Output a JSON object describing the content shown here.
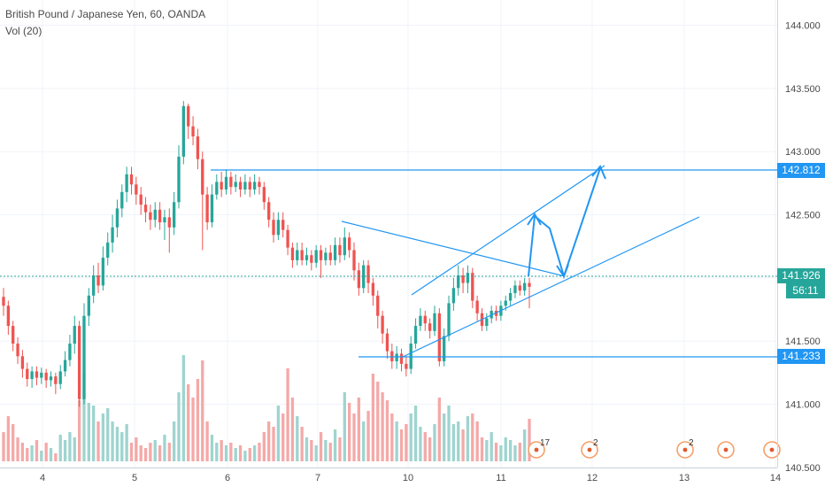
{
  "header": {
    "title": "British Pound / Japanese Yen, 60, OANDA",
    "volume_label": "Vol (20)"
  },
  "colors": {
    "up": "#26a69a",
    "down": "#ef5350",
    "up_vol": "#9fd4cf",
    "down_vol": "#f4a9a8",
    "drawing": "#2196f3",
    "current_price_tag": "#26a69a",
    "grid": "#f0f3fa",
    "axis_text": "#4a4a4a"
  },
  "chart_data": {
    "type": "candlestick",
    "symbol": "British Pound / Japanese Yen",
    "interval": "60",
    "source": "OANDA",
    "y_ticks": [
      "144.000",
      "143.500",
      "143.000",
      "142.500",
      "142.000",
      "141.500",
      "141.000",
      "140.500"
    ],
    "y_tick_values": [
      144.0,
      143.5,
      143.0,
      142.5,
      142.0,
      141.5,
      141.0,
      140.5
    ],
    "x_ticks": [
      "4",
      "5",
      "6",
      "7",
      "10",
      "11",
      "12",
      "13",
      "14"
    ],
    "ylim": [
      140.38,
      144.2
    ],
    "price_labels": {
      "resistance": "142.812",
      "current": "141.926",
      "countdown": "56:11",
      "support": "141.233"
    },
    "price_levels": {
      "resistance": 142.812,
      "current": 141.926,
      "support": 141.233
    },
    "event_markers": [
      {
        "label": "17"
      },
      {
        "label": "2"
      },
      {
        "label": "2"
      },
      {
        "label": ""
      },
      {
        "label": ""
      }
    ],
    "grid": true,
    "candles": [
      [
        141.85,
        141.78,
        141.92,
        141.7
      ],
      [
        141.78,
        141.62,
        141.82,
        141.55
      ],
      [
        141.62,
        141.48,
        141.66,
        141.42
      ],
      [
        141.48,
        141.38,
        141.53,
        141.32
      ],
      [
        141.38,
        141.28,
        141.43,
        141.21
      ],
      [
        141.28,
        141.2,
        141.33,
        141.14
      ],
      [
        141.2,
        141.26,
        141.3,
        141.13
      ],
      [
        141.26,
        141.21,
        141.3,
        141.15
      ],
      [
        141.21,
        141.25,
        141.29,
        141.16
      ],
      [
        141.25,
        141.19,
        141.28,
        141.13
      ],
      [
        141.19,
        141.22,
        141.26,
        141.14
      ],
      [
        141.22,
        141.16,
        141.25,
        141.08
      ],
      [
        141.16,
        141.26,
        141.31,
        141.12
      ],
      [
        141.26,
        141.35,
        141.42,
        141.22
      ],
      [
        141.35,
        141.48,
        141.55,
        141.3
      ],
      [
        141.48,
        141.62,
        141.7,
        141.4
      ],
      [
        141.62,
        141.04,
        141.66,
        140.98
      ],
      [
        141.04,
        141.7,
        141.8,
        141.0
      ],
      [
        141.7,
        141.86,
        141.92,
        141.62
      ],
      [
        141.86,
        142.02,
        142.1,
        141.8
      ],
      [
        142.02,
        141.94,
        142.12,
        141.88
      ],
      [
        141.94,
        142.16,
        142.25,
        141.9
      ],
      [
        142.16,
        142.28,
        142.36,
        142.1
      ],
      [
        142.28,
        142.4,
        142.5,
        142.2
      ],
      [
        142.4,
        142.55,
        142.62,
        142.32
      ],
      [
        142.55,
        142.68,
        142.74,
        142.48
      ],
      [
        142.68,
        142.82,
        142.88,
        142.6
      ],
      [
        142.82,
        142.74,
        142.88,
        142.66
      ],
      [
        142.74,
        142.66,
        142.8,
        142.58
      ],
      [
        142.66,
        142.58,
        142.72,
        142.5
      ],
      [
        142.58,
        142.52,
        142.64,
        142.44
      ],
      [
        142.52,
        142.46,
        142.58,
        142.38
      ],
      [
        142.46,
        142.54,
        142.6,
        142.4
      ],
      [
        142.54,
        142.44,
        142.6,
        142.38
      ],
      [
        142.44,
        142.48,
        142.54,
        142.3
      ],
      [
        142.48,
        142.4,
        142.55,
        142.2
      ],
      [
        142.4,
        142.6,
        142.68,
        142.34
      ],
      [
        142.6,
        142.96,
        143.05,
        142.55
      ],
      [
        142.96,
        143.36,
        143.4,
        142.9
      ],
      [
        143.36,
        143.2,
        143.38,
        143.1
      ],
      [
        143.2,
        143.12,
        143.28,
        143.05
      ],
      [
        143.12,
        142.94,
        143.18,
        142.86
      ],
      [
        142.94,
        142.66,
        143.0,
        142.22
      ],
      [
        142.66,
        142.44,
        142.72,
        142.38
      ],
      [
        142.44,
        142.66,
        142.74,
        142.4
      ],
      [
        142.66,
        142.76,
        142.82,
        142.62
      ],
      [
        142.76,
        142.7,
        142.84,
        142.64
      ],
      [
        142.7,
        142.8,
        142.86,
        142.66
      ],
      [
        142.8,
        142.72,
        142.84,
        142.66
      ],
      [
        142.72,
        142.76,
        142.82,
        142.68
      ],
      [
        142.76,
        142.7,
        142.8,
        142.64
      ],
      [
        142.7,
        142.76,
        142.82,
        142.66
      ],
      [
        142.76,
        142.7,
        142.8,
        142.64
      ],
      [
        142.7,
        142.76,
        142.82,
        142.66
      ],
      [
        142.76,
        142.72,
        142.8,
        142.66
      ],
      [
        142.72,
        142.6,
        142.76,
        142.54
      ],
      [
        142.6,
        142.46,
        142.64,
        142.4
      ],
      [
        142.46,
        142.34,
        142.52,
        142.28
      ],
      [
        142.34,
        142.46,
        142.52,
        142.3
      ],
      [
        142.46,
        142.38,
        142.52,
        142.32
      ],
      [
        142.38,
        142.24,
        142.42,
        142.18
      ],
      [
        142.24,
        142.14,
        142.28,
        142.08
      ],
      [
        142.14,
        142.22,
        142.28,
        142.1
      ],
      [
        142.22,
        142.14,
        142.28,
        142.1
      ],
      [
        142.14,
        142.18,
        142.24,
        142.1
      ],
      [
        142.18,
        142.12,
        142.22,
        142.06
      ],
      [
        142.12,
        142.22,
        142.26,
        142.08
      ],
      [
        142.22,
        142.14,
        142.26,
        142.0
      ],
      [
        142.14,
        142.2,
        142.24,
        142.1
      ],
      [
        142.2,
        142.14,
        142.26,
        142.1
      ],
      [
        142.14,
        142.26,
        142.32,
        142.1
      ],
      [
        142.26,
        142.18,
        142.32,
        142.12
      ],
      [
        142.18,
        142.32,
        142.4,
        142.14
      ],
      [
        142.32,
        142.22,
        142.36,
        142.16
      ],
      [
        142.22,
        142.06,
        142.28,
        141.98
      ],
      [
        142.06,
        141.92,
        142.12,
        141.86
      ],
      [
        141.92,
        142.1,
        142.14,
        141.88
      ],
      [
        142.1,
        141.96,
        142.14,
        141.88
      ],
      [
        141.96,
        141.86,
        142.0,
        141.78
      ],
      [
        141.86,
        141.7,
        141.9,
        141.6
      ],
      [
        141.7,
        141.56,
        141.74,
        141.48
      ],
      [
        141.56,
        141.42,
        141.6,
        141.36
      ],
      [
        141.42,
        141.34,
        141.48,
        141.28
      ],
      [
        141.34,
        141.4,
        141.46,
        141.28
      ],
      [
        141.4,
        141.32,
        141.44,
        141.26
      ],
      [
        141.32,
        141.28,
        141.38,
        141.22
      ],
      [
        141.28,
        141.48,
        141.54,
        141.24
      ],
      [
        141.48,
        141.62,
        141.68,
        141.44
      ],
      [
        141.62,
        141.7,
        141.76,
        141.58
      ],
      [
        141.7,
        141.64,
        141.74,
        141.58
      ],
      [
        141.64,
        141.58,
        141.68,
        141.52
      ],
      [
        141.58,
        141.72,
        141.78,
        141.54
      ],
      [
        141.72,
        141.34,
        141.76,
        141.3
      ],
      [
        141.34,
        141.54,
        141.6,
        141.3
      ],
      [
        141.54,
        141.8,
        141.86,
        141.5
      ],
      [
        141.8,
        141.92,
        142.0,
        141.74
      ],
      [
        141.92,
        142.02,
        142.1,
        141.86
      ],
      [
        142.02,
        141.96,
        142.08,
        141.88
      ],
      [
        141.96,
        142.04,
        142.1,
        141.88
      ],
      [
        142.04,
        141.82,
        142.08,
        141.76
      ],
      [
        141.82,
        141.72,
        141.86,
        141.66
      ],
      [
        141.72,
        141.62,
        141.76,
        141.58
      ],
      [
        141.62,
        141.68,
        141.72,
        141.58
      ],
      [
        141.68,
        141.74,
        141.78,
        141.64
      ],
      [
        141.74,
        141.7,
        141.78,
        141.66
      ],
      [
        141.7,
        141.78,
        141.82,
        141.66
      ],
      [
        141.78,
        141.82,
        141.86,
        141.74
      ],
      [
        141.82,
        141.88,
        141.92,
        141.78
      ],
      [
        141.88,
        141.94,
        141.98,
        141.84
      ],
      [
        141.94,
        141.9,
        141.98,
        141.86
      ],
      [
        141.9,
        141.96,
        142.0,
        141.86
      ],
      [
        141.96,
        141.93,
        142.0,
        141.76
      ]
    ],
    "volumes": [
      0.22,
      0.34,
      0.28,
      0.18,
      0.14,
      0.1,
      0.12,
      0.16,
      0.08,
      0.14,
      0.1,
      0.06,
      0.2,
      0.16,
      0.22,
      0.18,
      0.46,
      0.66,
      0.44,
      0.42,
      0.3,
      0.36,
      0.4,
      0.3,
      0.26,
      0.22,
      0.28,
      0.14,
      0.18,
      0.12,
      0.1,
      0.14,
      0.16,
      0.12,
      0.2,
      0.14,
      0.3,
      0.52,
      0.8,
      0.58,
      0.48,
      0.62,
      0.76,
      0.3,
      0.2,
      0.14,
      0.16,
      0.12,
      0.14,
      0.1,
      0.12,
      0.08,
      0.1,
      0.12,
      0.14,
      0.22,
      0.3,
      0.26,
      0.42,
      0.36,
      0.7,
      0.48,
      0.34,
      0.26,
      0.18,
      0.16,
      0.12,
      0.22,
      0.16,
      0.14,
      0.24,
      0.18,
      0.52,
      0.44,
      0.36,
      0.48,
      0.3,
      0.38,
      0.66,
      0.6,
      0.52,
      0.46,
      0.36,
      0.3,
      0.24,
      0.28,
      0.36,
      0.42,
      0.26,
      0.22,
      0.18,
      0.28,
      0.48,
      0.36,
      0.42,
      0.28,
      0.3,
      0.24,
      0.34,
      0.36,
      0.3,
      0.18,
      0.16,
      0.22,
      0.14,
      0.12,
      0.18,
      0.16,
      0.12,
      0.14,
      0.24,
      0.32
    ]
  }
}
